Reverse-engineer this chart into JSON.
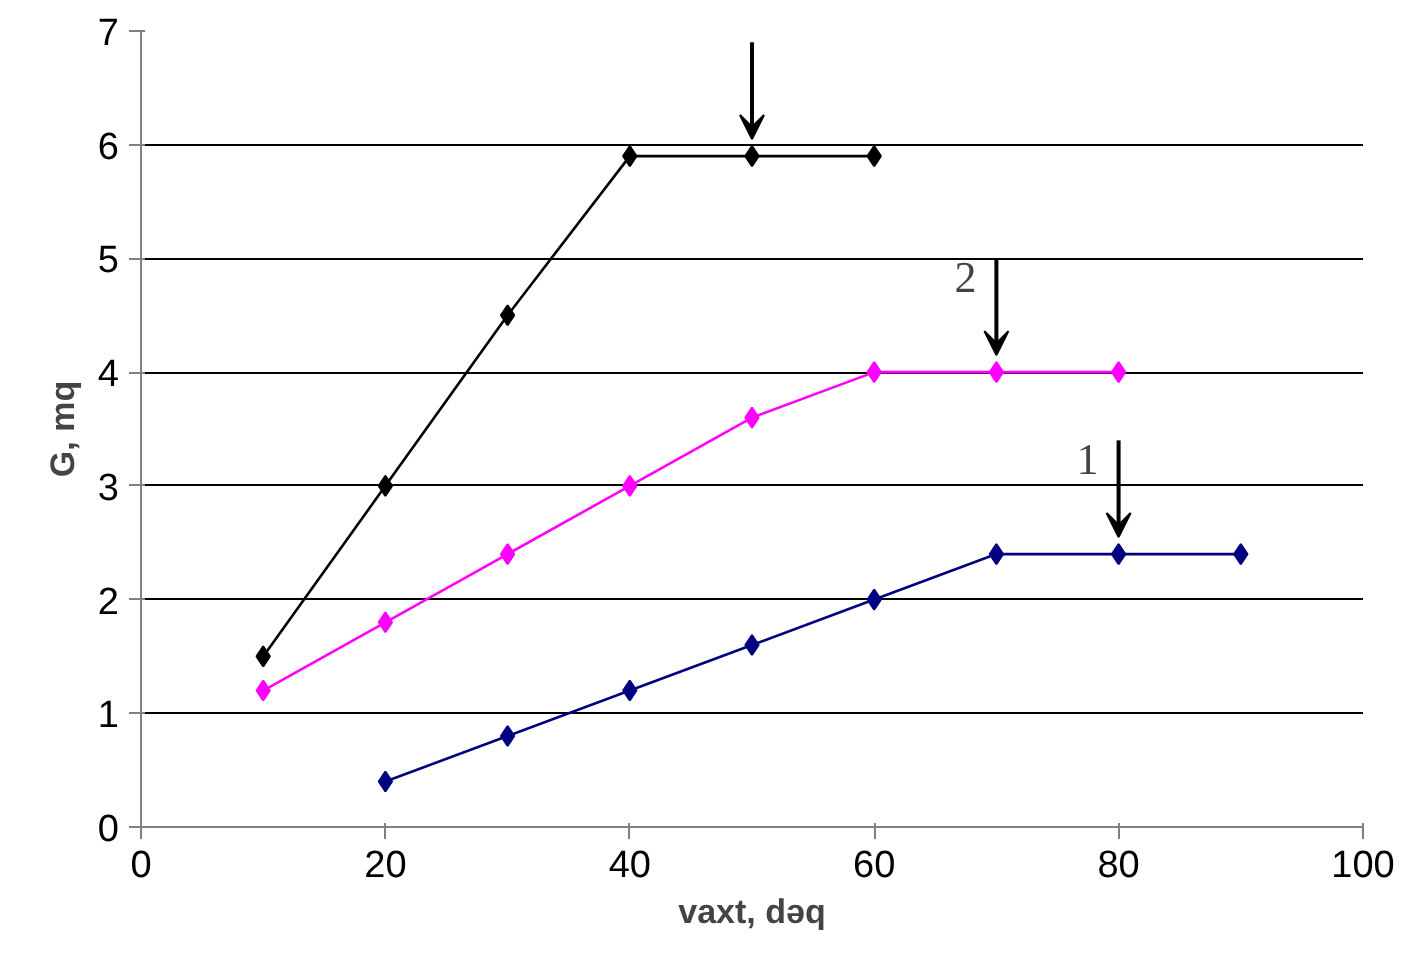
{
  "chart_data": {
    "type": "line",
    "xlabel": "vaxt, dəq",
    "ylabel": "G, mq",
    "xlim": [
      0,
      100
    ],
    "ylim": [
      0,
      7
    ],
    "xticks": [
      0,
      20,
      40,
      60,
      80,
      100
    ],
    "yticks": [
      0,
      1,
      2,
      3,
      4,
      5,
      6,
      7
    ],
    "grid": "y",
    "marker": "diamond",
    "line_style": "solid",
    "series": [
      {
        "color": "#000080",
        "x": [
          20,
          30,
          40,
          50,
          60,
          70,
          80,
          90
        ],
        "values": [
          0.4,
          0.8,
          1.2,
          1.6,
          2.0,
          2.4,
          2.4,
          2.4
        ]
      },
      {
        "color": "#ff00ff",
        "x": [
          10,
          20,
          30,
          40,
          50,
          60,
          70,
          80
        ],
        "values": [
          1.2,
          1.8,
          2.4,
          3.0,
          3.6,
          4.0,
          4.0,
          4.0
        ]
      },
      {
        "color": "#000000",
        "x": [
          10,
          20,
          30,
          40,
          50,
          60
        ],
        "values": [
          1.5,
          3.0,
          4.5,
          5.9,
          5.9,
          5.9
        ]
      }
    ],
    "annotations": [
      "1",
      "2"
    ]
  }
}
